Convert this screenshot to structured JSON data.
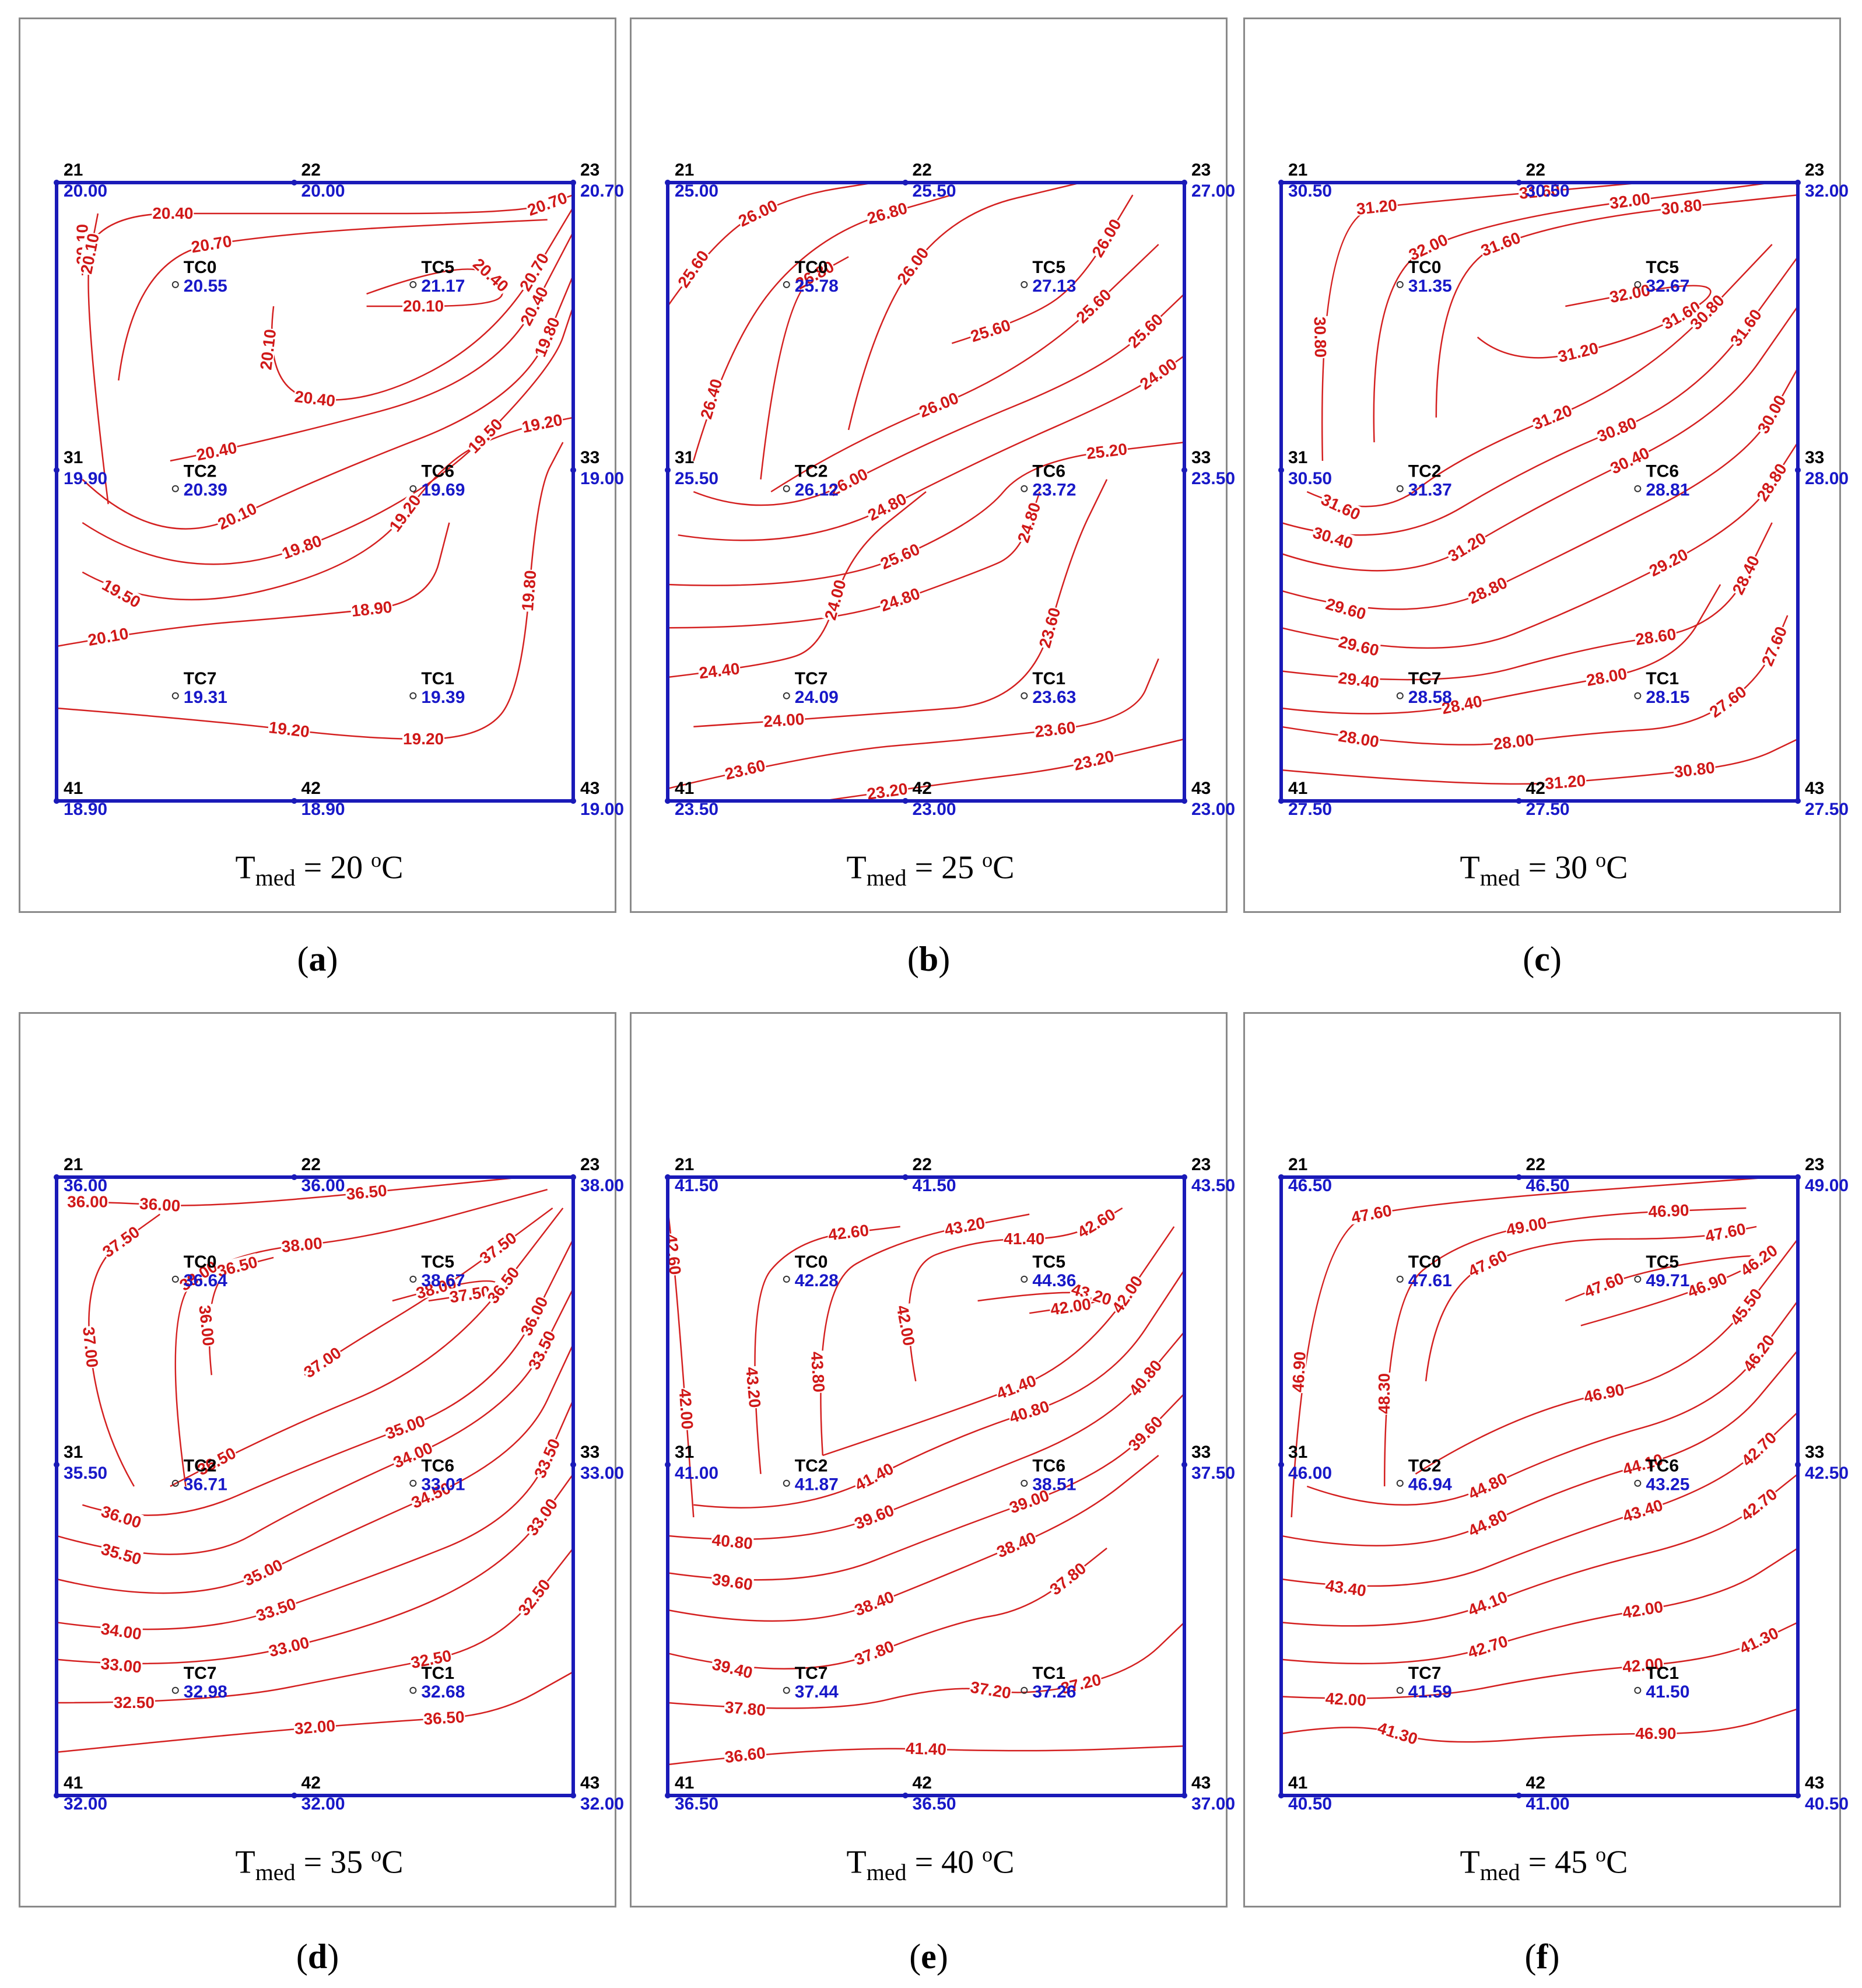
{
  "panels": [
    {
      "id": "a",
      "letter": "a",
      "title": {
        "t": "T",
        "sub": "med",
        "eq": " = 20 ",
        "sup": "o",
        "unit": "C"
      },
      "corners": {
        "21": {
          "label": "21",
          "value": "20.00"
        },
        "22": {
          "label": "22",
          "value": "20.00"
        },
        "23": {
          "label": "23",
          "value": "20.70"
        },
        "31": {
          "label": "31",
          "value": "19.90"
        },
        "33": {
          "label": "33",
          "value": "19.00"
        },
        "41": {
          "label": "41",
          "value": "18.90"
        },
        "42": {
          "label": "42",
          "value": "18.90"
        },
        "43": {
          "label": "43",
          "value": "19.00"
        }
      },
      "sensors": {
        "TC0": {
          "label": "TC0",
          "value": "20.55"
        },
        "TC5": {
          "label": "TC5",
          "value": "21.17"
        },
        "TC2": {
          "label": "TC2",
          "value": "20.39"
        },
        "TC6": {
          "label": "TC6",
          "value": "19.69"
        },
        "TC7": {
          "label": "TC7",
          "value": "19.31"
        },
        "TC1": {
          "label": "TC1",
          "value": "19.39"
        }
      },
      "contour_labels": [
        "20.10",
        "20.40",
        "20.70",
        "20.70",
        "20.10",
        "20.40",
        "20.70",
        "20.40",
        "20.10",
        "20.10",
        "20.40",
        "20.40",
        "20.10",
        "19.80",
        "19.80",
        "19.50",
        "19.50",
        "19.20",
        "19.20",
        "19.20",
        "19.20",
        "19.80",
        "20.10",
        "18.90"
      ]
    },
    {
      "id": "b",
      "letter": "b",
      "title": {
        "t": "T",
        "sub": "med",
        "eq": " = 25 ",
        "sup": "o",
        "unit": "C"
      },
      "corners": {
        "21": {
          "label": "21",
          "value": "25.00"
        },
        "22": {
          "label": "22",
          "value": "25.50"
        },
        "23": {
          "label": "23",
          "value": "27.00"
        },
        "31": {
          "label": "31",
          "value": "25.50"
        },
        "33": {
          "label": "33",
          "value": "23.50"
        },
        "41": {
          "label": "41",
          "value": "23.50"
        },
        "42": {
          "label": "42",
          "value": "23.00"
        },
        "43": {
          "label": "43",
          "value": "23.00"
        }
      },
      "sensors": {
        "TC0": {
          "label": "TC0",
          "value": "25.78"
        },
        "TC5": {
          "label": "TC5",
          "value": "27.13"
        },
        "TC2": {
          "label": "TC2",
          "value": "26.12"
        },
        "TC6": {
          "label": "TC6",
          "value": "23.72"
        },
        "TC7": {
          "label": "TC7",
          "value": "24.09"
        },
        "TC1": {
          "label": "TC1",
          "value": "23.63"
        }
      },
      "contour_labels": [
        "25.60",
        "26.00",
        "26.40",
        "26.80",
        "26.80",
        "26.00",
        "25.60",
        "26.00",
        "26.00",
        "25.60",
        "26.00",
        "25.60",
        "24.80",
        "24.00",
        "25.60",
        "25.20",
        "24.80",
        "24.80",
        "24.40",
        "24.00",
        "24.00",
        "23.60",
        "23.60",
        "23.60",
        "23.20",
        "23.20"
      ]
    },
    {
      "id": "c",
      "letter": "c",
      "title": {
        "t": "T",
        "sub": "med",
        "eq": " = 30 ",
        "sup": "o",
        "unit": "C"
      },
      "corners": {
        "21": {
          "label": "21",
          "value": "30.50"
        },
        "22": {
          "label": "22",
          "value": "30.50"
        },
        "23": {
          "label": "23",
          "value": "32.00"
        },
        "31": {
          "label": "31",
          "value": "30.50"
        },
        "33": {
          "label": "33",
          "value": "28.00"
        },
        "41": {
          "label": "41",
          "value": "27.50"
        },
        "42": {
          "label": "42",
          "value": "27.50"
        },
        "43": {
          "label": "43",
          "value": "27.50"
        }
      },
      "sensors": {
        "TC0": {
          "label": "TC0",
          "value": "31.35"
        },
        "TC5": {
          "label": "TC5",
          "value": "32.67"
        },
        "TC2": {
          "label": "TC2",
          "value": "31.37"
        },
        "TC6": {
          "label": "TC6",
          "value": "28.81"
        },
        "TC7": {
          "label": "TC7",
          "value": "28.58"
        },
        "TC1": {
          "label": "TC1",
          "value": "28.15"
        }
      },
      "contour_labels": [
        "30.80",
        "31.20",
        "31.60",
        "32.00",
        "32.00",
        "31.60",
        "30.80",
        "31.20",
        "31.60",
        "32.00",
        "31.60",
        "31.20",
        "30.80",
        "30.40",
        "30.80",
        "31.60",
        "31.20",
        "30.40",
        "29.60",
        "28.80",
        "30.00",
        "29.60",
        "29.20",
        "28.80",
        "29.40",
        "28.60",
        "28.40",
        "28.40",
        "28.00",
        "28.00",
        "28.00",
        "27.60",
        "27.60",
        "31.20",
        "30.80"
      ]
    },
    {
      "id": "d",
      "letter": "d",
      "title": {
        "t": "T",
        "sub": "med",
        "eq": " = 35 ",
        "sup": "o",
        "unit": "C"
      },
      "corners": {
        "21": {
          "label": "21",
          "value": "36.00"
        },
        "22": {
          "label": "22",
          "value": "36.00"
        },
        "23": {
          "label": "23",
          "value": "38.00"
        },
        "31": {
          "label": "31",
          "value": "35.50"
        },
        "33": {
          "label": "33",
          "value": "33.00"
        },
        "41": {
          "label": "41",
          "value": "32.00"
        },
        "42": {
          "label": "42",
          "value": "32.00"
        },
        "43": {
          "label": "43",
          "value": "32.00"
        }
      },
      "sensors": {
        "TC0": {
          "label": "TC0",
          "value": "36.64"
        },
        "TC5": {
          "label": "TC5",
          "value": "38.67"
        },
        "TC2": {
          "label": "TC2",
          "value": "36.71"
        },
        "TC6": {
          "label": "TC6",
          "value": "33.01"
        },
        "TC7": {
          "label": "TC7",
          "value": "32.98"
        },
        "TC1": {
          "label": "TC1",
          "value": "32.68"
        }
      },
      "contour_labels": [
        "36.00",
        "36.00",
        "36.50",
        "37.00",
        "37.50",
        "38.00",
        "38.00",
        "36.00",
        "36.50",
        "37.00",
        "37.50",
        "38.00",
        "37.50",
        "36.50",
        "36.50",
        "36.00",
        "35.00",
        "36.00",
        "35.50",
        "34.00",
        "33.50",
        "35.00",
        "34.50",
        "34.00",
        "33.50",
        "33.50",
        "33.00",
        "33.00",
        "33.00",
        "32.50",
        "32.50",
        "32.50",
        "32.00",
        "36.50"
      ]
    },
    {
      "id": "e",
      "letter": "e",
      "title": {
        "t": "T",
        "sub": "med",
        "eq": " = 40 ",
        "sup": "o",
        "unit": "C"
      },
      "corners": {
        "21": {
          "label": "21",
          "value": "41.50"
        },
        "22": {
          "label": "22",
          "value": "41.50"
        },
        "23": {
          "label": "23",
          "value": "43.50"
        },
        "31": {
          "label": "31",
          "value": "41.00"
        },
        "33": {
          "label": "33",
          "value": "37.50"
        },
        "41": {
          "label": "41",
          "value": "36.50"
        },
        "42": {
          "label": "42",
          "value": "36.50"
        },
        "43": {
          "label": "43",
          "value": "37.00"
        }
      },
      "sensors": {
        "TC0": {
          "label": "TC0",
          "value": "42.28"
        },
        "TC5": {
          "label": "TC5",
          "value": "44.36"
        },
        "TC2": {
          "label": "TC2",
          "value": "41.87"
        },
        "TC6": {
          "label": "TC6",
          "value": "38.51"
        },
        "TC7": {
          "label": "TC7",
          "value": "37.44"
        },
        "TC1": {
          "label": "TC1",
          "value": "37.26"
        }
      },
      "contour_labels": [
        "42.00",
        "42.60",
        "43.20",
        "42.60",
        "43.80",
        "43.20",
        "42.00",
        "41.40",
        "42.60",
        "43.20",
        "42.00",
        "41.40",
        "42.00",
        "41.40",
        "40.80",
        "40.80",
        "39.60",
        "40.80",
        "39.60",
        "39.00",
        "39.60",
        "38.40",
        "38.40",
        "39.40",
        "37.80",
        "37.80",
        "37.80",
        "37.20",
        "37.20",
        "36.60",
        "41.40"
      ]
    },
    {
      "id": "f",
      "letter": "f",
      "title": {
        "t": "T",
        "sub": "med",
        "eq": " = 45 ",
        "sup": "o",
        "unit": "C"
      },
      "corners": {
        "21": {
          "label": "21",
          "value": "46.50"
        },
        "22": {
          "label": "22",
          "value": "46.50"
        },
        "23": {
          "label": "23",
          "value": "49.00"
        },
        "31": {
          "label": "31",
          "value": "46.00"
        },
        "33": {
          "label": "33",
          "value": "42.50"
        },
        "41": {
          "label": "41",
          "value": "40.50"
        },
        "42": {
          "label": "42",
          "value": "41.00"
        },
        "43": {
          "label": "43",
          "value": "40.50"
        }
      },
      "sensors": {
        "TC0": {
          "label": "TC0",
          "value": "47.61"
        },
        "TC5": {
          "label": "TC5",
          "value": "49.71"
        },
        "TC2": {
          "label": "TC2",
          "value": "46.94"
        },
        "TC6": {
          "label": "TC6",
          "value": "43.25"
        },
        "TC7": {
          "label": "TC7",
          "value": "41.59"
        },
        "TC1": {
          "label": "TC1",
          "value": "41.50"
        }
      },
      "contour_labels": [
        "46.90",
        "47.60",
        "48.30",
        "49.00",
        "46.90",
        "47.60",
        "47.60",
        "46.90",
        "46.20",
        "47.60",
        "46.90",
        "45.50",
        "44.80",
        "46.20",
        "44.80",
        "44.10",
        "43.40",
        "43.40",
        "42.70",
        "44.10",
        "42.70",
        "42.70",
        "42.00",
        "42.00",
        "42.00",
        "41.30",
        "41.30",
        "46.90"
      ]
    }
  ]
}
